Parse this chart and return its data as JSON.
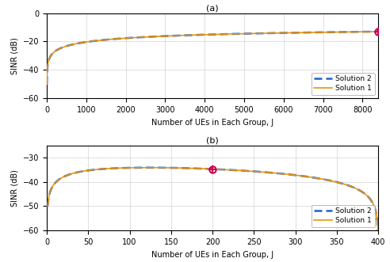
{
  "subplot_a": {
    "title": "(a)",
    "xlabel": "Number of UEs in Each Group, J",
    "ylabel": "SINR (dB)",
    "xlim": [
      0,
      8400
    ],
    "ylim": [
      -60,
      0
    ],
    "xticks": [
      0,
      1000,
      2000,
      3000,
      4000,
      5000,
      6000,
      7000,
      8000
    ],
    "yticks": [
      0,
      -20,
      -40,
      -60
    ],
    "marker_x": 8400,
    "line_color_1": "#E8960C",
    "line_color_2": "#2060C8",
    "marker_color": "#CC0055",
    "legend_labels": [
      "Solution 1",
      "Solution 2"
    ]
  },
  "subplot_b": {
    "title": "(b)",
    "xlabel": "Number of UEs in Each Group, J",
    "ylabel": "SINR (dB)",
    "xlim": [
      0,
      400
    ],
    "ylim": [
      -60,
      -25
    ],
    "xticks": [
      0,
      50,
      100,
      150,
      200,
      250,
      300,
      350,
      400
    ],
    "yticks": [
      -30,
      -40,
      -50,
      -60
    ],
    "marker_x": 200,
    "line_color_1": "#E8960C",
    "line_color_2": "#2060C8",
    "marker_color": "#CC0055",
    "legend_labels": [
      "Solution 1",
      "Solution 2"
    ]
  },
  "fig_width": 4.92,
  "fig_height": 3.31,
  "dpi": 100
}
